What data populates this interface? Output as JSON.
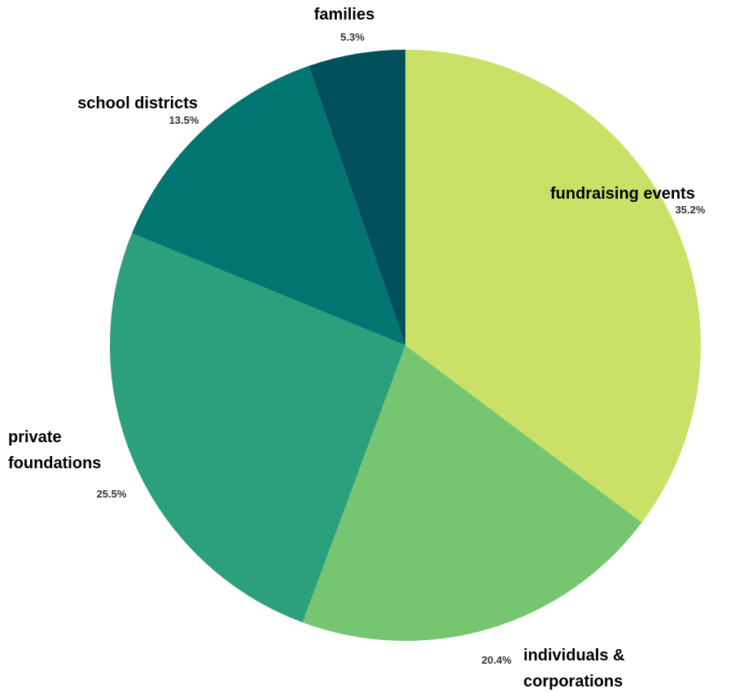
{
  "chart_data": {
    "type": "pie",
    "start_angle_deg": 0,
    "direction": "clockwise",
    "slices": [
      {
        "label": [
          "fundraising events"
        ],
        "value": 35.2,
        "value_label": "35.2%",
        "color": "#c9e167"
      },
      {
        "label": [
          "individuals &",
          "corporations"
        ],
        "value": 20.4,
        "value_label": "20.4%",
        "color": "#76c571"
      },
      {
        "label": [
          "private",
          "foundations"
        ],
        "value": 25.5,
        "value_label": "25.5%",
        "color": "#2ca07c"
      },
      {
        "label": [
          "school districts"
        ],
        "value": 13.5,
        "value_label": "13.5%",
        "color": "#037571"
      },
      {
        "label": [
          "families"
        ],
        "value": 5.3,
        "value_label": "5.3%",
        "color": "#03505d"
      }
    ]
  }
}
